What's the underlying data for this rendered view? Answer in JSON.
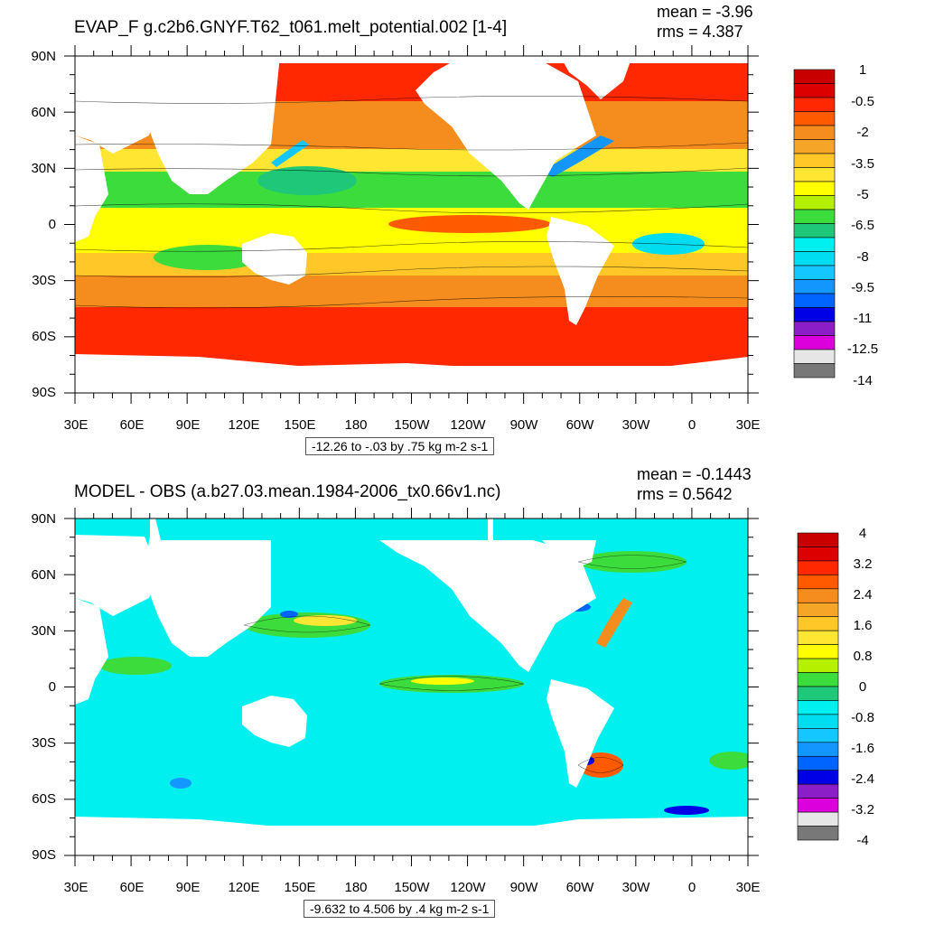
{
  "panels": [
    {
      "title": "EVAP_F g.c2b6.GNYF.T62_t061.melt_potential.002 [1-4]",
      "mean": "mean = -3.96",
      "rms": "rms = 4.387",
      "range_text": "-12.26 to -.03 by .75 kg m-2 s-1",
      "lat_labels": [
        "90N",
        "60N",
        "30N",
        "0",
        "30S",
        "60S",
        "90S"
      ],
      "lon_labels": [
        "30E",
        "60E",
        "90E",
        "120E",
        "150E",
        "180",
        "150W",
        "120W",
        "90W",
        "60W",
        "30W",
        "0",
        "30E"
      ],
      "colorbar": {
        "labels": [
          "1",
          "-0.5",
          "-2",
          "-3.5",
          "-5",
          "-6.5",
          "-8",
          "-9.5",
          "-11",
          "-12.5",
          "-14"
        ],
        "colors": [
          "#C80000",
          "#DC0000",
          "#FF2800",
          "#FF5A00",
          "#F58C1E",
          "#F5A528",
          "#FFC828",
          "#FFE632",
          "#FFFF00",
          "#B4F000",
          "#3CDC3C",
          "#1EC878",
          "#00F0F0",
          "#00DCF0",
          "#14C8FF",
          "#1496FF",
          "#0064FF",
          "#0000E6",
          "#8C1EC8",
          "#DC00DC",
          "#E6E6E6",
          "#787878"
        ]
      }
    },
    {
      "title": "MODEL - OBS (a.b27.03.mean.1984-2006_tx0.66v1.nc)",
      "mean": "mean = -0.1443",
      "rms": "rms = 0.5642",
      "range_text": "-9.632 to 4.506 by .4 kg m-2 s-1",
      "lat_labels": [
        "90N",
        "60N",
        "30N",
        "0",
        "30S",
        "60S",
        "90S"
      ],
      "lon_labels": [
        "30E",
        "60E",
        "90E",
        "120E",
        "150E",
        "180",
        "150W",
        "120W",
        "90W",
        "60W",
        "30W",
        "0",
        "30E"
      ],
      "colorbar": {
        "labels": [
          "4",
          "3.2",
          "2.4",
          "1.6",
          "0.8",
          "0",
          "-0.8",
          "-1.6",
          "-2.4",
          "-3.2",
          "-4"
        ],
        "colors": [
          "#C80000",
          "#DC0000",
          "#FF2800",
          "#FF5A00",
          "#F58C1E",
          "#F5A528",
          "#FFC828",
          "#FFE632",
          "#FFFF00",
          "#B4F000",
          "#3CDC3C",
          "#1EC878",
          "#00F0F0",
          "#00DCF0",
          "#14C8FF",
          "#1496FF",
          "#0064FF",
          "#0000E6",
          "#8C1EC8",
          "#DC00DC",
          "#E6E6E6",
          "#787878"
        ]
      }
    }
  ]
}
